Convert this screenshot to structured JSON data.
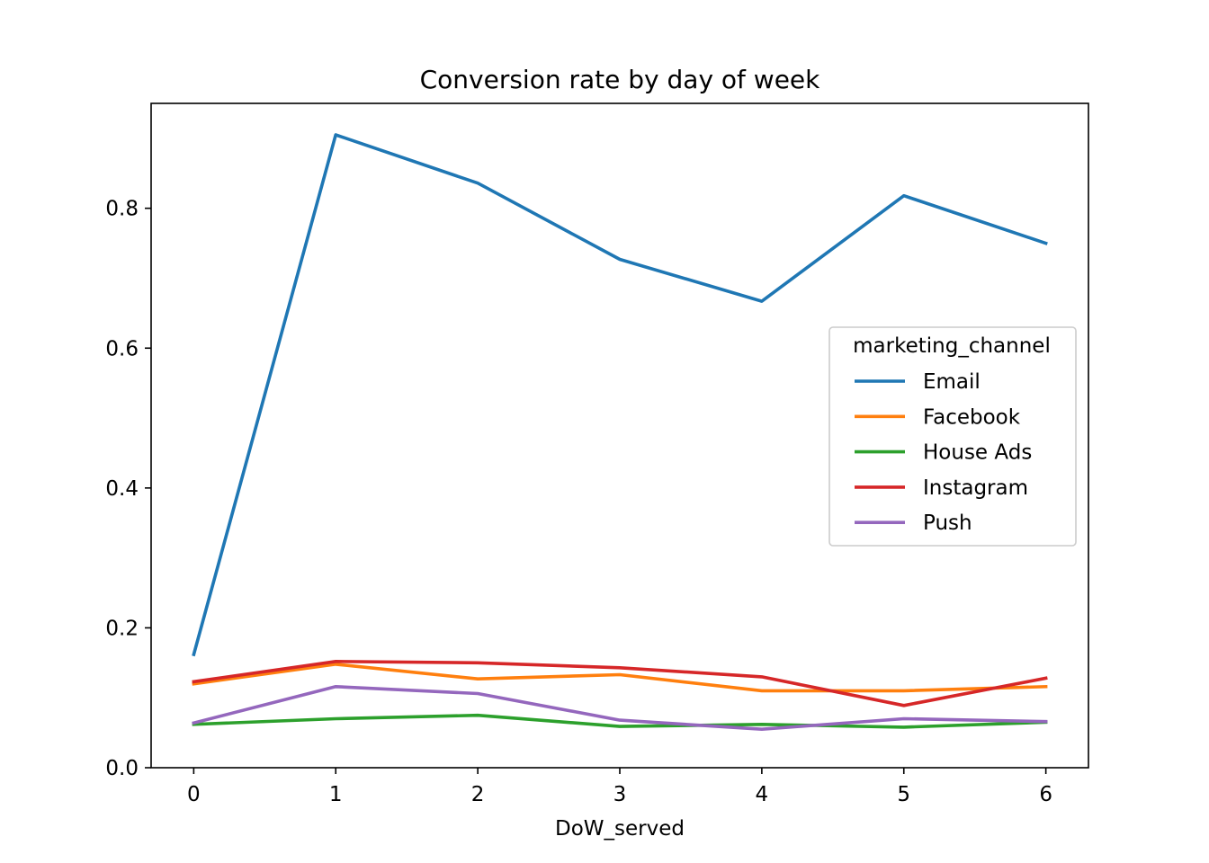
{
  "chart_data": {
    "type": "line",
    "title": "Conversion rate by day of week",
    "xlabel": "DoW_served",
    "ylabel": "",
    "x": [
      0,
      1,
      2,
      3,
      4,
      5,
      6
    ],
    "x_ticks": [
      "0",
      "1",
      "2",
      "3",
      "4",
      "5",
      "6"
    ],
    "xlim": [
      -0.3,
      6.3
    ],
    "ylim": [
      0.0,
      0.95
    ],
    "y_ticks": [
      "0.0",
      "0.2",
      "0.4",
      "0.6",
      "0.8"
    ],
    "grid": false,
    "legend": {
      "title": "marketing_channel",
      "placement": "center-right"
    },
    "series": [
      {
        "name": "Email",
        "color": "#1f77b4",
        "values": [
          0.162,
          0.905,
          0.836,
          0.727,
          0.667,
          0.818,
          0.75
        ]
      },
      {
        "name": "Facebook",
        "color": "#ff7f0e",
        "values": [
          0.12,
          0.148,
          0.127,
          0.133,
          0.11,
          0.11,
          0.116
        ]
      },
      {
        "name": "House Ads",
        "color": "#2ca02c",
        "values": [
          0.062,
          0.07,
          0.075,
          0.059,
          0.062,
          0.058,
          0.065
        ]
      },
      {
        "name": "Instagram",
        "color": "#d62728",
        "values": [
          0.123,
          0.152,
          0.15,
          0.143,
          0.13,
          0.089,
          0.128
        ]
      },
      {
        "name": "Push",
        "color": "#9467bd",
        "values": [
          0.064,
          0.116,
          0.106,
          0.068,
          0.055,
          0.07,
          0.066
        ]
      }
    ]
  }
}
